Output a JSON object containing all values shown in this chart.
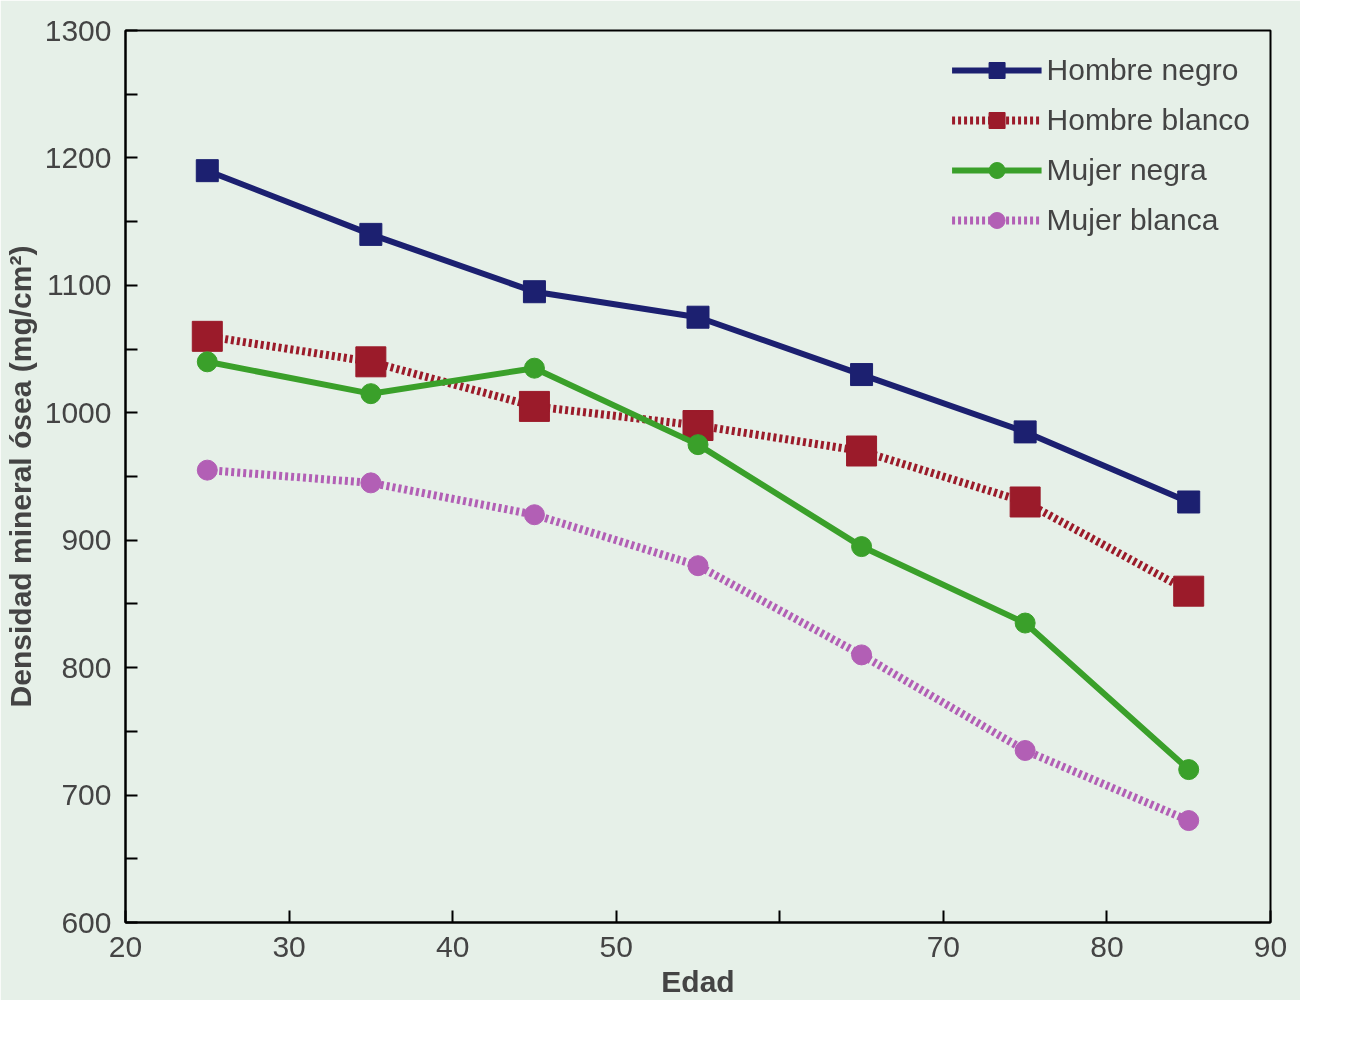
{
  "chart_data": {
    "type": "line",
    "xlabel": "Edad",
    "ylabel": "Densidad mineral ósea (mg/cm²)",
    "x": [
      25,
      35,
      45,
      55,
      65,
      75,
      85
    ],
    "series": [
      {
        "name": "Hombre negro",
        "color": "#1c2070",
        "marker": "square",
        "line_style": "solid",
        "values": [
          1190,
          1140,
          1095,
          1075,
          1030,
          985,
          930
        ]
      },
      {
        "name": "Hombre blanco",
        "color": "#9b1b2a",
        "marker": "square",
        "line_style": "dotted",
        "values": [
          1060,
          1040,
          1005,
          990,
          970,
          930,
          860
        ]
      },
      {
        "name": "Mujer negra",
        "color": "#3aa02a",
        "marker": "circle",
        "line_style": "solid",
        "values": [
          1040,
          1015,
          1035,
          975,
          895,
          835,
          720
        ]
      },
      {
        "name": "Mujer blanca",
        "color": "#b25fb5",
        "marker": "circle",
        "line_style": "dotted",
        "values": [
          955,
          945,
          920,
          880,
          810,
          735,
          680
        ]
      }
    ],
    "xlim": [
      20,
      90
    ],
    "xticks": [
      20,
      30,
      40,
      50,
      {
        "value": 60,
        "label": null
      },
      70,
      80,
      90
    ],
    "ylim": [
      600,
      1300
    ],
    "yticks": [
      600,
      {
        "value": 650,
        "label": null
      },
      700,
      {
        "value": 750,
        "label": null
      },
      800,
      {
        "value": 850,
        "label": null
      },
      900,
      {
        "value": 950,
        "label": null
      },
      1000,
      {
        "value": 1050,
        "label": null
      },
      1100,
      {
        "value": 1150,
        "label": null
      },
      1200,
      {
        "value": 1250,
        "label": null
      },
      1300
    ],
    "grid": false,
    "legend": "top right"
  }
}
